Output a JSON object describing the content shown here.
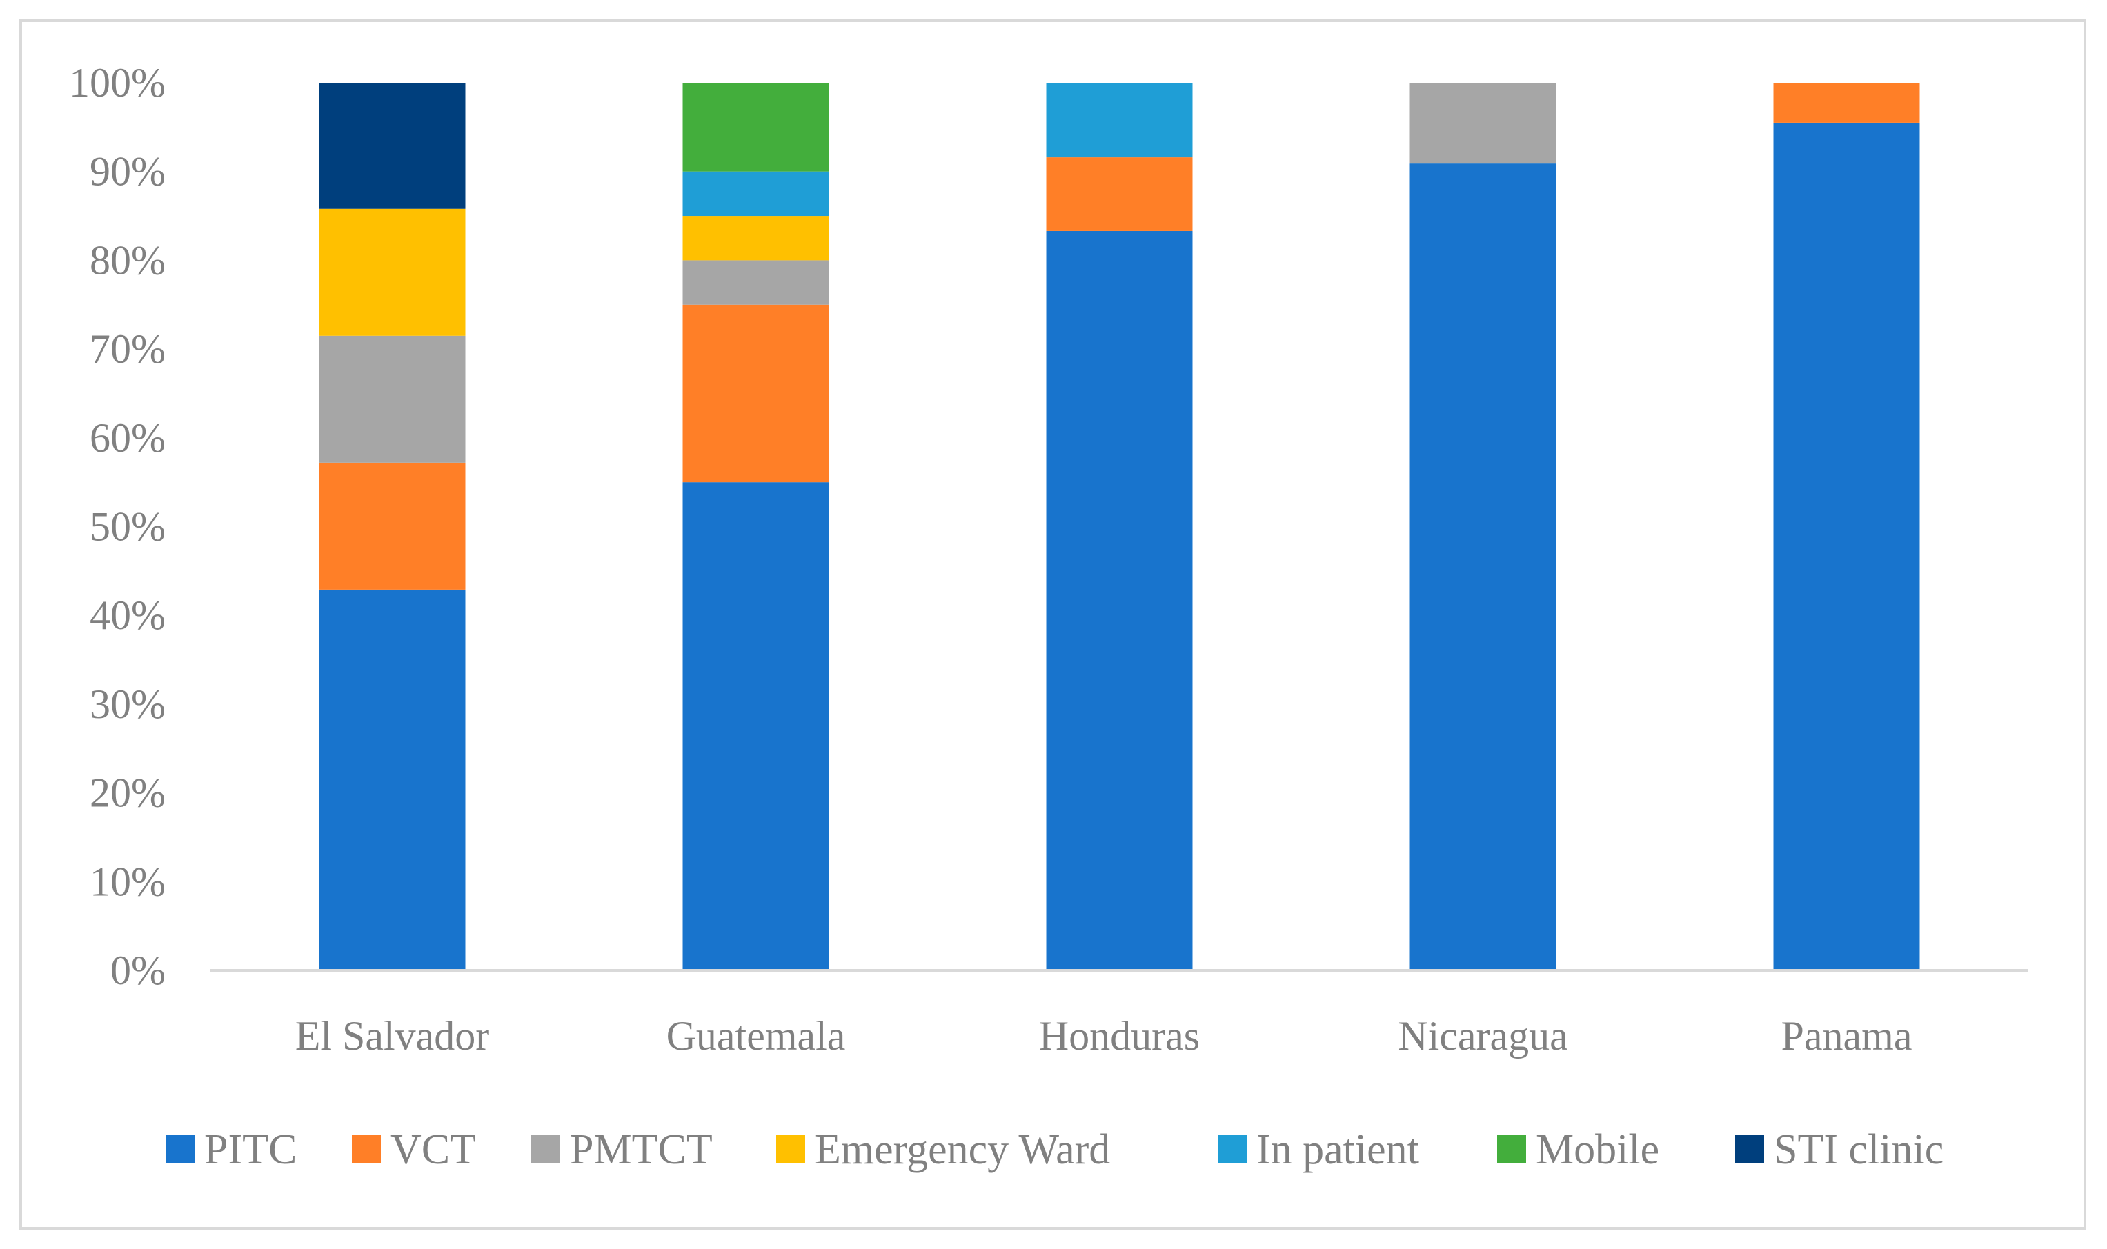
{
  "chart_data": {
    "type": "bar",
    "stacked": true,
    "title": "",
    "xlabel": "",
    "ylabel": "",
    "ylim": [
      0,
      100
    ],
    "y_ticks": [
      "0%",
      "10%",
      "20%",
      "30%",
      "40%",
      "50%",
      "60%",
      "70%",
      "80%",
      "90%",
      "100%"
    ],
    "categories": [
      "El Salvador",
      "Guatemala",
      "Honduras",
      "Nicaragua",
      "Panama"
    ],
    "series": [
      {
        "name": "PITC",
        "color": "#1874CD",
        "values": [
          42.9,
          55.0,
          83.3,
          90.9,
          95.5
        ]
      },
      {
        "name": "VCT",
        "color": "#FF7F27",
        "values": [
          14.3,
          20.0,
          8.3,
          0,
          4.5
        ]
      },
      {
        "name": "PMTCT",
        "color": "#A6A6A6",
        "values": [
          14.3,
          5.0,
          0,
          9.1,
          0
        ]
      },
      {
        "name": "Emergency Ward",
        "color": "#FFC000",
        "values": [
          14.3,
          5.0,
          0,
          0,
          0
        ]
      },
      {
        "name": "In patient",
        "color": "#1F9ED6",
        "values": [
          0,
          5.0,
          8.4,
          0,
          0
        ]
      },
      {
        "name": "Mobile",
        "color": "#43AE3C",
        "values": [
          0,
          10.0,
          0,
          0,
          0
        ]
      },
      {
        "name": "STI clinic",
        "color": "#003F7D",
        "values": [
          14.2,
          0,
          0,
          0,
          0
        ]
      }
    ],
    "grid": false,
    "legend_position": "bottom"
  }
}
